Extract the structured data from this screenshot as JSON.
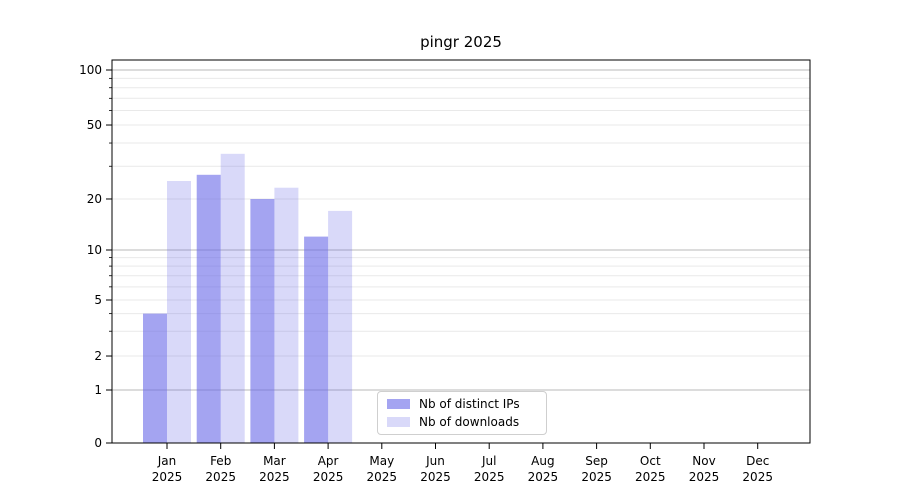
{
  "page": {
    "background": "#ffffff"
  },
  "chart_data": {
    "type": "bar",
    "title": "pingr 2025",
    "categories": [
      "Jan",
      "Feb",
      "Mar",
      "Apr",
      "May",
      "Jun",
      "Jul",
      "Aug",
      "Sep",
      "Oct",
      "Nov",
      "Dec"
    ],
    "x_year_label": "2025",
    "series": [
      {
        "name": "Nb of distinct IPs",
        "color": "#6767e8",
        "opacity": 0.6,
        "values": [
          4,
          27,
          20,
          12,
          0,
          0,
          0,
          0,
          0,
          0,
          0,
          0
        ]
      },
      {
        "name": "Nb of downloads",
        "color": "#6767e8",
        "opacity": 0.25,
        "values": [
          25,
          35,
          23,
          17,
          0,
          0,
          0,
          0,
          0,
          0,
          0,
          0
        ]
      }
    ],
    "y_axis": {
      "scale": "asinh-like (linear 0-1, log above 1)",
      "tick_values": [
        100,
        50,
        20,
        10,
        5,
        2,
        1,
        0
      ],
      "tick_labels": [
        "100",
        "50",
        "20",
        "10",
        "5",
        "2",
        "1",
        "0"
      ],
      "minor_tick_values": [
        3,
        4,
        6,
        7,
        8,
        9,
        30,
        40,
        60,
        70,
        80,
        90
      ],
      "decade_values": [
        1,
        10,
        100
      ]
    },
    "legend": {
      "position": "lower center"
    },
    "grid": {
      "major_color": "#b8b8b8",
      "minor_color": "#e9e9e9"
    },
    "axis_color": "#000000",
    "text_color": "#000000"
  }
}
